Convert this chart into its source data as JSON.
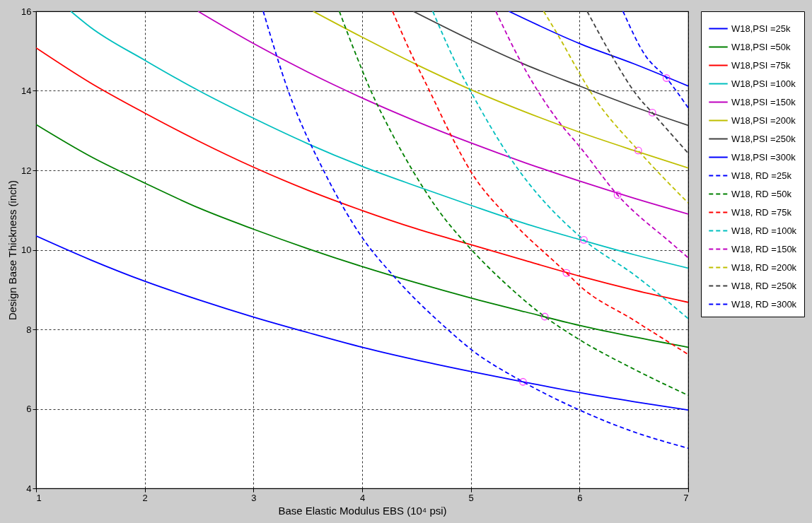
{
  "chart_data": {
    "type": "line",
    "xlabel": "Base Elastic Modulus EBS (10⁴ psi)",
    "ylabel": "Design Base Thickness (inch)",
    "xlim": [
      1,
      7
    ],
    "ylim": [
      4,
      16
    ],
    "xticks": [
      1,
      2,
      3,
      4,
      5,
      6,
      7
    ],
    "yticks": [
      4,
      6,
      8,
      10,
      12,
      14,
      16
    ],
    "grid": true,
    "legend": "right",
    "series": [
      {
        "name": "W18,PSI =25k",
        "color": "#0000ff",
        "line_style": "solid",
        "x": [
          1,
          1.5,
          2,
          2.5,
          3,
          3.5,
          4,
          4.5,
          5,
          5.5,
          6,
          6.5,
          7
        ],
        "values": [
          10.35,
          9.75,
          9.21,
          8.74,
          8.31,
          7.92,
          7.55,
          7.23,
          6.94,
          6.67,
          6.41,
          6.18,
          5.97
        ]
      },
      {
        "name": "W18,PSI =50k",
        "color": "#008000",
        "line_style": "solid",
        "x": [
          1,
          1.5,
          2,
          2.5,
          3,
          3.5,
          4,
          4.5,
          5,
          5.5,
          6,
          6.5,
          7
        ],
        "values": [
          13.15,
          12.35,
          11.68,
          11.05,
          10.52,
          10.03,
          9.58,
          9.17,
          8.79,
          8.44,
          8.1,
          7.81,
          7.55
        ]
      },
      {
        "name": "W18,PSI =75k",
        "color": "#ff0000",
        "line_style": "solid",
        "x": [
          1,
          1.5,
          2,
          2.5,
          3,
          3.5,
          4,
          4.5,
          5,
          5.5,
          6,
          6.5,
          7
        ],
        "values": [
          15.08,
          14.2,
          13.44,
          12.73,
          12.08,
          11.5,
          10.99,
          10.53,
          10.13,
          9.73,
          9.34,
          8.99,
          8.68
        ]
      },
      {
        "name": "W18,PSI =100k",
        "color": "#00bfbf",
        "line_style": "solid",
        "x": [
          1.32,
          1.5,
          2,
          2.5,
          3,
          3.5,
          4,
          4.5,
          5,
          5.5,
          6,
          6.5,
          7
        ],
        "values": [
          16,
          15.6,
          14.77,
          14.0,
          13.31,
          12.67,
          12.1,
          11.6,
          11.12,
          10.66,
          10.26,
          9.88,
          9.54
        ]
      },
      {
        "name": "W18,PSI =150k",
        "color": "#bf00bf",
        "line_style": "solid",
        "x": [
          2.49,
          3,
          3.5,
          4,
          4.5,
          5,
          5.5,
          6,
          6.5,
          7
        ],
        "values": [
          16,
          15.19,
          14.47,
          13.82,
          13.23,
          12.69,
          12.19,
          11.73,
          11.3,
          10.9
        ]
      },
      {
        "name": "W18,PSI =200k",
        "color": "#bfbf00",
        "line_style": "solid",
        "x": [
          3.55,
          4,
          4.5,
          5,
          5.5,
          6,
          6.5,
          7
        ],
        "values": [
          16,
          15.35,
          14.66,
          14.03,
          13.47,
          12.96,
          12.5,
          12.06
        ]
      },
      {
        "name": "W18,PSI =250k",
        "color": "#404040",
        "line_style": "solid",
        "x": [
          4.47,
          5,
          5.5,
          6,
          6.5,
          7
        ],
        "values": [
          16,
          15.28,
          14.66,
          14.12,
          13.6,
          13.13
        ]
      },
      {
        "name": "W18,PSI =300k",
        "color": "#0000ff",
        "line_style": "solid",
        "x": [
          5.35,
          6,
          6.5,
          7
        ],
        "values": [
          16,
          15.19,
          14.68,
          14.12
        ]
      },
      {
        "name": "W18, RD =25k",
        "color": "#0000ff",
        "line_style": "dashed",
        "x": [
          3.09,
          3.32,
          3.65,
          4.0,
          4.29,
          4.79,
          5.0,
          5.48,
          6.0,
          6.5,
          7.0
        ],
        "values": [
          16,
          14.0,
          11.97,
          10.31,
          9.34,
          7.99,
          7.5,
          6.68,
          5.97,
          5.42,
          5.01
        ]
      },
      {
        "name": "W18, RD =50k",
        "color": "#008000",
        "line_style": "dashed",
        "x": [
          3.79,
          3.93,
          4.08,
          4.26,
          4.47,
          4.7,
          4.97,
          5.3,
          5.68,
          6.0,
          6.5,
          7.0
        ],
        "values": [
          16,
          15,
          14,
          13,
          11.97,
          11,
          10.11,
          9.2,
          8.32,
          7.74,
          7.0,
          6.34
        ]
      },
      {
        "name": "W18, RD =75k",
        "color": "#ff0000",
        "line_style": "dashed",
        "x": [
          4.28,
          4.44,
          4.62,
          4.82,
          5.0,
          5.36,
          5.88,
          6.0,
          6.5,
          7.0
        ],
        "values": [
          16,
          15.0,
          14.0,
          12.87,
          11.97,
          10.77,
          9.42,
          9.1,
          8.23,
          7.37
        ]
      },
      {
        "name": "W18, RD =100k",
        "color": "#00bfbf",
        "line_style": "dashed",
        "x": [
          4.65,
          4.86,
          5.0,
          5.37,
          6.04,
          6.5,
          7.0
        ],
        "values": [
          16,
          14.71,
          13.98,
          12.28,
          10.25,
          9.38,
          8.27
        ]
      },
      {
        "name": "W18, RD =150k",
        "color": "#bf00bf",
        "line_style": "dashed",
        "x": [
          5.23,
          5.47,
          5.83,
          6.0,
          6.35,
          6.87,
          7.0
        ],
        "values": [
          16,
          14.68,
          13.15,
          12.6,
          11.38,
          10.11,
          9.8
        ]
      },
      {
        "name": "W18, RD =200k",
        "color": "#bfbf00",
        "line_style": "dashed",
        "x": [
          5.67,
          5.8,
          6.0,
          6.1,
          6.54,
          7.0
        ],
        "values": [
          16,
          15.41,
          14.44,
          13.98,
          12.5,
          11.18
        ]
      },
      {
        "name": "W18, RD =250k",
        "color": "#404040",
        "line_style": "dashed",
        "x": [
          6.07,
          6.31,
          6.53,
          6.67,
          7.0
        ],
        "values": [
          16,
          14.82,
          13.88,
          13.45,
          12.43
        ]
      },
      {
        "name": "W18, RD =300k",
        "color": "#0000ff",
        "line_style": "dashed",
        "x": [
          6.4,
          6.6,
          6.8,
          7.0
        ],
        "values": [
          16,
          14.91,
          14.32,
          13.57
        ]
      },
      {
        "type": "scatter",
        "color": "#ff00ff",
        "marker": "circle",
        "x": [
          5.48,
          5.68,
          5.88,
          6.04,
          6.35,
          6.54,
          6.67,
          6.8
        ],
        "values": [
          6.68,
          8.32,
          9.42,
          10.25,
          11.38,
          12.5,
          13.45,
          14.32
        ]
      }
    ]
  }
}
